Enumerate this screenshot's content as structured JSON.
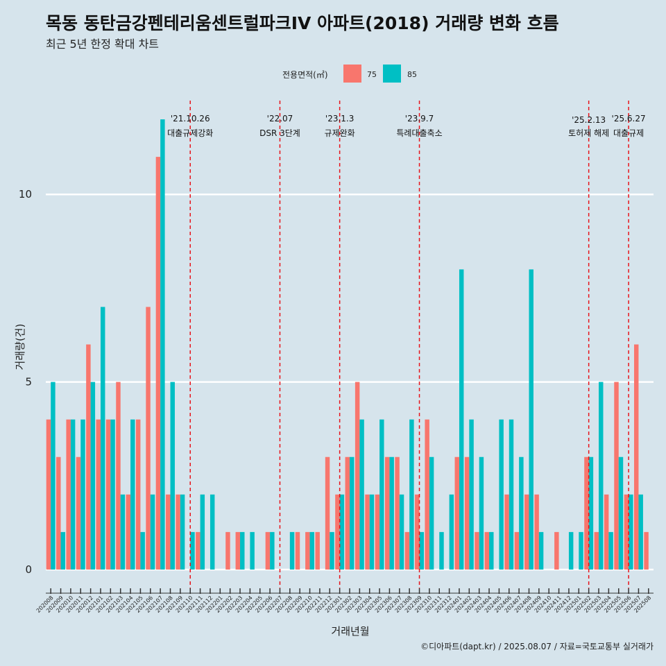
{
  "chart_data": {
    "type": "bar",
    "title": "목동 동탄금강펜테리움센트럴파크IV 아파트(2018) 거래량 변화 흐름",
    "subtitle": "최근 5년 한정 확대 차트",
    "xlabel": "거래년월",
    "ylabel": "거래량(건)",
    "caption": "©디아파트(dapt.kr) / 2025.08.07 / 자료=국토교통부 실거래가",
    "legend": {
      "title": "전용면적(㎡)",
      "position": "top"
    },
    "ylim": [
      -0.5,
      12.5
    ],
    "yticks": [
      0,
      5,
      10
    ],
    "grid": true,
    "categories": [
      "202008",
      "202009",
      "202010",
      "202011",
      "202012",
      "202101",
      "202102",
      "202103",
      "202104",
      "202105",
      "202106",
      "202107",
      "202108",
      "202109",
      "202110",
      "202111",
      "202112",
      "202201",
      "202202",
      "202203",
      "202204",
      "202205",
      "202206",
      "202207",
      "202208",
      "202209",
      "202210",
      "202211",
      "202212",
      "202301",
      "202302",
      "202303",
      "202304",
      "202305",
      "202306",
      "202307",
      "202308",
      "202309",
      "202310",
      "202311",
      "202312",
      "202401",
      "202402",
      "202403",
      "202404",
      "202405",
      "202406",
      "202407",
      "202408",
      "202409",
      "202410",
      "202411",
      "202412",
      "202501",
      "202502",
      "202503",
      "202504",
      "202505",
      "202506",
      "202507",
      "202508"
    ],
    "series": [
      {
        "name": "75",
        "color": "#f8766d",
        "values": [
          4,
          3,
          4,
          3,
          6,
          4,
          4,
          5,
          2,
          4,
          7,
          11,
          2,
          2,
          0,
          1,
          0,
          0,
          1,
          1,
          0,
          0,
          1,
          0,
          0,
          1,
          1,
          1,
          3,
          2,
          3,
          5,
          2,
          2,
          3,
          3,
          1,
          2,
          4,
          0,
          0,
          3,
          3,
          1,
          1,
          0,
          2,
          1,
          2,
          2,
          0,
          1,
          0,
          0,
          3,
          1,
          2,
          5,
          2,
          6,
          1
        ]
      },
      {
        "name": "85",
        "color": "#00bfc4",
        "values": [
          5,
          1,
          4,
          4,
          5,
          7,
          4,
          2,
          4,
          1,
          2,
          12,
          5,
          2,
          1,
          2,
          2,
          0,
          0,
          1,
          1,
          0,
          1,
          0,
          1,
          0,
          1,
          0,
          1,
          2,
          3,
          4,
          2,
          4,
          3,
          2,
          4,
          1,
          3,
          1,
          2,
          8,
          4,
          3,
          1,
          4,
          4,
          3,
          8,
          1,
          0,
          0,
          1,
          1,
          3,
          5,
          1,
          3,
          2,
          2,
          0
        ]
      }
    ],
    "annotations": [
      {
        "date": "'21.10.26",
        "label": "대출규제강화",
        "category": "202110"
      },
      {
        "date": "'22.07",
        "label": "DSR 3단계",
        "category": "202207"
      },
      {
        "date": "'23.1.3",
        "label": "규제완화",
        "category": "202301"
      },
      {
        "date": "'23.9.7",
        "label": "특례대출축소",
        "category": "202309"
      },
      {
        "date": "'25.2.13",
        "label": "토허제 해제",
        "category": "202502"
      },
      {
        "date": "'25.6.27",
        "label": "대출규제",
        "category": "202506"
      }
    ]
  }
}
